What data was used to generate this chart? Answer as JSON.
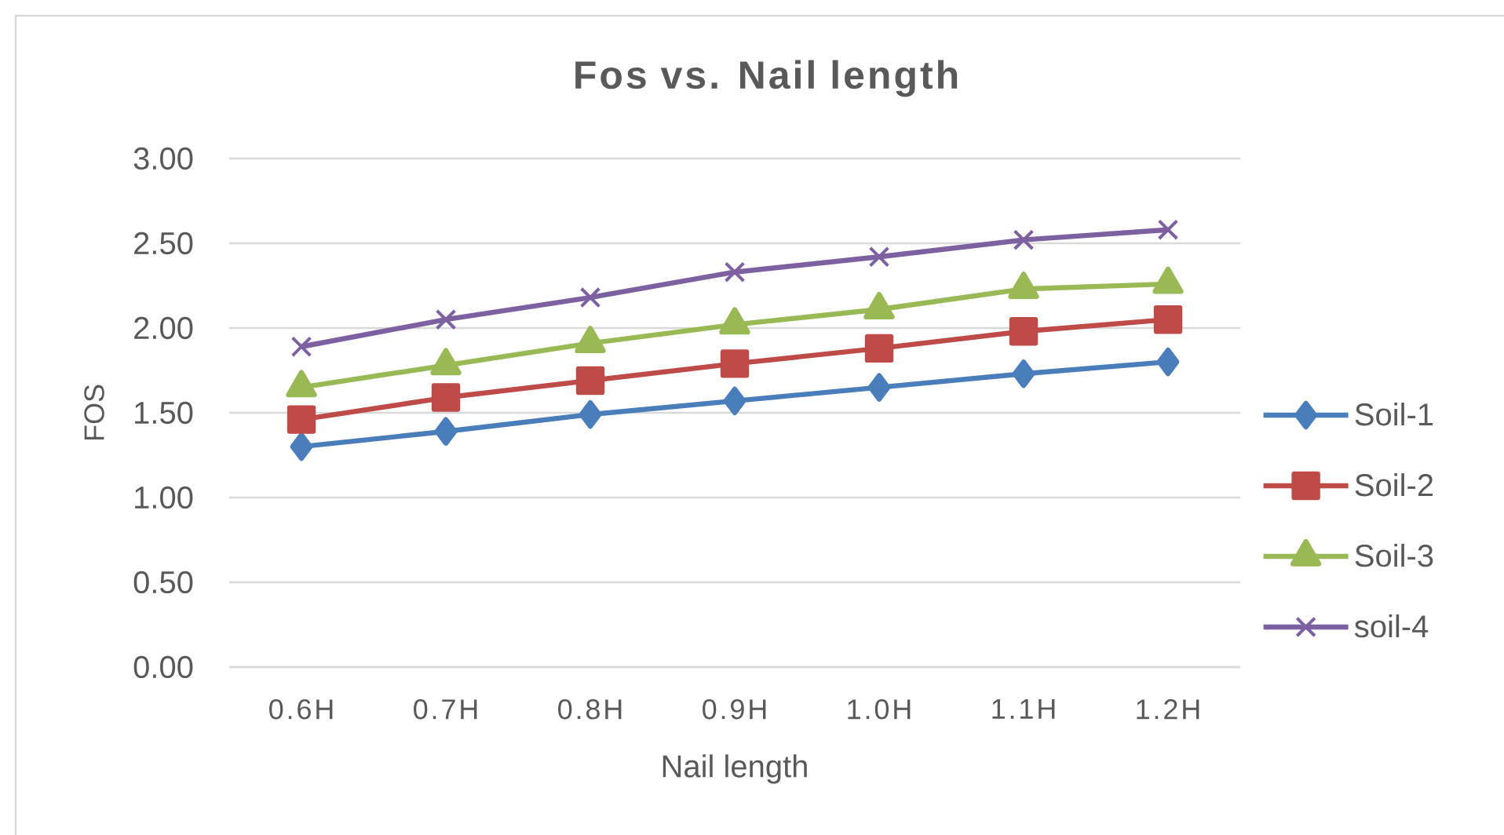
{
  "chart_data": {
    "type": "line",
    "title": "Fos vs. Nail length",
    "xlabel": "Nail length",
    "ylabel": "FOS",
    "categories": [
      "0.6H",
      "0.7H",
      "0.8H",
      "0.9H",
      "1.0H",
      "1.1H",
      "1.2H"
    ],
    "series": [
      {
        "name": "Soil-1",
        "color": "#4a7ebb",
        "marker": "diamond",
        "values": [
          1.3,
          1.39,
          1.49,
          1.57,
          1.65,
          1.73,
          1.8
        ]
      },
      {
        "name": "Soil-2",
        "color": "#be4b48",
        "marker": "square",
        "values": [
          1.46,
          1.59,
          1.69,
          1.79,
          1.88,
          1.98,
          2.05
        ]
      },
      {
        "name": "Soil-3",
        "color": "#98b954",
        "marker": "triangle",
        "values": [
          1.65,
          1.78,
          1.91,
          2.02,
          2.11,
          2.23,
          2.26
        ]
      },
      {
        "name": "soil-4",
        "color": "#7d60a0",
        "marker": "cross",
        "values": [
          1.89,
          2.05,
          2.18,
          2.33,
          2.42,
          2.52,
          2.58
        ]
      }
    ],
    "ylim": [
      0,
      3
    ],
    "yticks": [
      {
        "value": 0,
        "label": "0.00"
      },
      {
        "value": 0.5,
        "label": "0.50"
      },
      {
        "value": 1,
        "label": "1.00"
      },
      {
        "value": 1.5,
        "label": "1.50"
      },
      {
        "value": 2,
        "label": "2.00"
      },
      {
        "value": 2.5,
        "label": "2.50"
      },
      {
        "value": 3,
        "label": "3.00"
      }
    ],
    "grid": "y",
    "legend": "right"
  }
}
